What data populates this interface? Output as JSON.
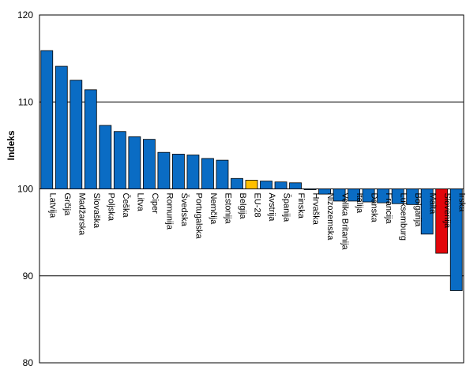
{
  "chart_data": {
    "type": "bar",
    "title": "",
    "xlabel": "",
    "ylabel": "Indeks",
    "ylim": [
      80,
      120
    ],
    "yticks": [
      80,
      90,
      100,
      110,
      120
    ],
    "baseline": 100,
    "grid": true,
    "categories": [
      "Latvija",
      "Grčija",
      "Madžarska",
      "Slovaška",
      "Poljska",
      "Češka",
      "Litva",
      "Ciper",
      "Romunija",
      "Švedska",
      "Portugalska",
      "Nemčija",
      "Estonija",
      "Belgija",
      "EU-28",
      "Avstrija",
      "Španija",
      "Finska",
      "Hrvaška",
      "Nizozemska",
      "Velika Britanija",
      "Italija",
      "Danska",
      "Francija",
      "Luksemburg",
      "Bolgarija",
      "Malta",
      "Slovenija",
      "Irska"
    ],
    "values": [
      115.9,
      114.1,
      112.5,
      111.4,
      107.3,
      106.6,
      106.0,
      105.7,
      104.2,
      104.0,
      103.9,
      103.5,
      103.3,
      101.2,
      101.0,
      100.9,
      100.8,
      100.7,
      100.0,
      99.4,
      98.6,
      98.6,
      98.5,
      98.4,
      98.3,
      98.2,
      94.8,
      92.6,
      88.3
    ],
    "colors": {
      "default": "#0A6CC4",
      "EU-28": "#FFC000",
      "Slovenija": "#E3060B",
      "border": "#000000",
      "grid": "#000000"
    }
  }
}
